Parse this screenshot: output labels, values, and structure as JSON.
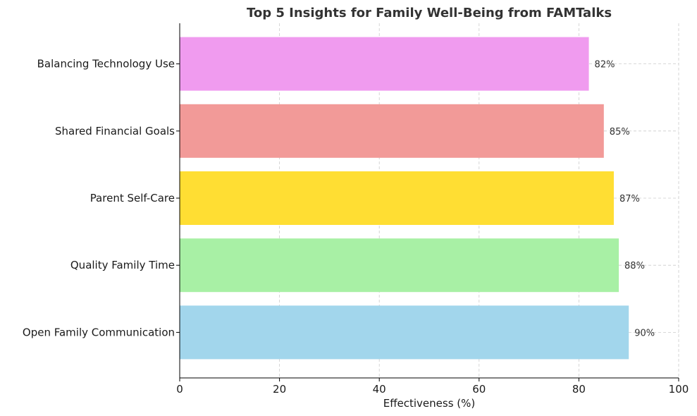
{
  "chart_data": {
    "type": "bar",
    "orientation": "horizontal",
    "title": "Top 5 Insights for Family Well-Being from FAMTalks",
    "xlabel": "Effectiveness (%)",
    "ylabel": "",
    "xlim": [
      0,
      100
    ],
    "xticks": [
      0,
      20,
      40,
      60,
      80,
      100
    ],
    "grid": true,
    "categories": [
      "Open Family Communication",
      "Quality Family Time",
      "Parent Self-Care",
      "Shared Financial Goals",
      "Balancing Technology Use"
    ],
    "values": [
      90,
      88,
      87,
      85,
      82
    ],
    "data_labels": [
      "90%",
      "88%",
      "87%",
      "85%",
      "82%"
    ],
    "colors": [
      "#a2d6ec",
      "#a8f0a5",
      "#ffde33",
      "#f29a98",
      "#f09bef"
    ]
  }
}
